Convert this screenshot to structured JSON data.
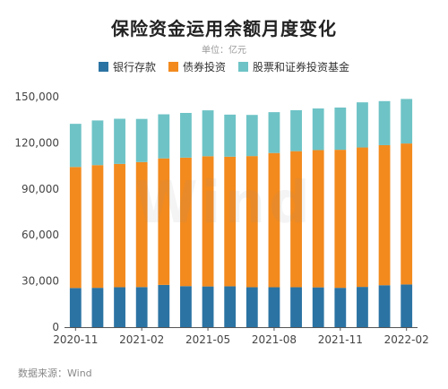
{
  "title": "保险资金运用余额月度变化",
  "unit": "单位：亿元",
  "source": "数据来源：Wind",
  "watermark": "Wind",
  "colors": {
    "bank": "#2b73a3",
    "bond": "#f28a1e",
    "stock": "#6ec3c6"
  },
  "chart_data": {
    "type": "bar",
    "stacked": true,
    "title": "保险资金运用余额月度变化",
    "ylim": [
      0,
      150000
    ],
    "yticks": [
      "0",
      "30,000",
      "60,000",
      "90,000",
      "120,000",
      "150,000"
    ],
    "xtick_labels": [
      "2020-11",
      "2021-02",
      "2021-05",
      "2021-08",
      "2021-11",
      "2022-02"
    ],
    "grid": false,
    "legend": "top",
    "categories": [
      "2020-11",
      "2020-12",
      "2021-01",
      "2021-02",
      "2021-03",
      "2021-04",
      "2021-05",
      "2021-06",
      "2021-07",
      "2021-08",
      "2021-09",
      "2021-10",
      "2021-11",
      "2021-12",
      "2022-01",
      "2022-02"
    ],
    "series": [
      {
        "name": "银行存款",
        "values": [
          25500,
          25600,
          26000,
          26100,
          27500,
          26700,
          26500,
          26600,
          26000,
          26000,
          26000,
          25900,
          25600,
          26200,
          27300,
          27800
        ]
      },
      {
        "name": "债券投资",
        "values": [
          78800,
          79900,
          80300,
          81400,
          82400,
          83700,
          84800,
          84400,
          85400,
          87400,
          88600,
          89400,
          89900,
          90800,
          91200,
          91800
        ]
      },
      {
        "name": "股票和证券投资基金",
        "values": [
          28100,
          29100,
          29400,
          28100,
          28700,
          29100,
          29900,
          27400,
          26800,
          26600,
          26700,
          27100,
          27500,
          29400,
          28700,
          29000
        ]
      }
    ]
  }
}
